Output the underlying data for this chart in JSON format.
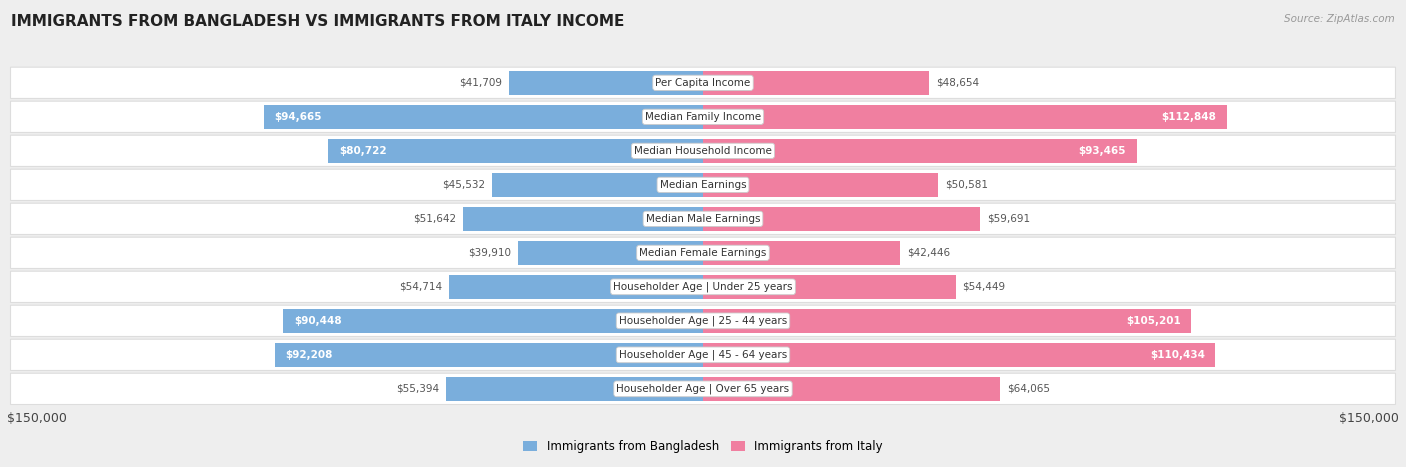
{
  "title": "IMMIGRANTS FROM BANGLADESH VS IMMIGRANTS FROM ITALY INCOME",
  "source": "Source: ZipAtlas.com",
  "categories": [
    "Per Capita Income",
    "Median Family Income",
    "Median Household Income",
    "Median Earnings",
    "Median Male Earnings",
    "Median Female Earnings",
    "Householder Age | Under 25 years",
    "Householder Age | 25 - 44 years",
    "Householder Age | 45 - 64 years",
    "Householder Age | Over 65 years"
  ],
  "bangladesh_values": [
    41709,
    94665,
    80722,
    45532,
    51642,
    39910,
    54714,
    90448,
    92208,
    55394
  ],
  "italy_values": [
    48654,
    112848,
    93465,
    50581,
    59691,
    42446,
    54449,
    105201,
    110434,
    64065
  ],
  "bangladesh_labels": [
    "$41,709",
    "$94,665",
    "$80,722",
    "$45,532",
    "$51,642",
    "$39,910",
    "$54,714",
    "$90,448",
    "$92,208",
    "$55,394"
  ],
  "italy_labels": [
    "$48,654",
    "$112,848",
    "$93,465",
    "$50,581",
    "$59,691",
    "$42,446",
    "$54,449",
    "$105,201",
    "$110,434",
    "$64,065"
  ],
  "bangladesh_color": "#7aaedc",
  "italy_color": "#f07fa0",
  "bangladesh_label_inner_color": "#ffffff",
  "bangladesh_label_outer_color": "#555555",
  "italy_label_inner_color": "#ffffff",
  "italy_label_outer_color": "#555555",
  "bangladesh_label_threshold": 70000,
  "italy_label_threshold": 70000,
  "max_value": 150000,
  "bar_height": 0.72,
  "background_color": "#eeeeee",
  "row_bg_color": "#ffffff",
  "row_edge_color": "#dddddd",
  "legend_bangladesh": "Immigrants from Bangladesh",
  "legend_italy": "Immigrants from Italy",
  "xlabel_left": "$150,000",
  "xlabel_right": "$150,000",
  "cat_label_fontsize": 7.5,
  "val_label_fontsize": 7.5
}
